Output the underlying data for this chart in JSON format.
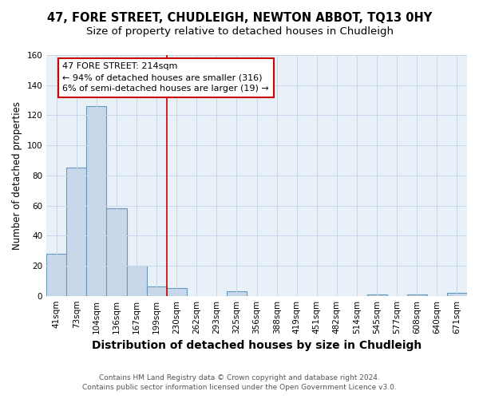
{
  "title": "47, FORE STREET, CHUDLEIGH, NEWTON ABBOT, TQ13 0HY",
  "subtitle": "Size of property relative to detached houses in Chudleigh",
  "xlabel": "Distribution of detached houses by size in Chudleigh",
  "ylabel": "Number of detached properties",
  "categories": [
    "41sqm",
    "73sqm",
    "104sqm",
    "136sqm",
    "167sqm",
    "199sqm",
    "230sqm",
    "262sqm",
    "293sqm",
    "325sqm",
    "356sqm",
    "388sqm",
    "419sqm",
    "451sqm",
    "482sqm",
    "514sqm",
    "545sqm",
    "577sqm",
    "608sqm",
    "640sqm",
    "671sqm"
  ],
  "values": [
    28,
    85,
    126,
    58,
    20,
    6,
    5,
    0,
    0,
    3,
    0,
    0,
    0,
    0,
    0,
    0,
    1,
    0,
    1,
    0,
    2
  ],
  "bar_color": "#c8d8ea",
  "bar_edge_color": "#6699bb",
  "subject_line_color": "#cc0000",
  "annotation_line1": "47 FORE STREET: 214sqm",
  "annotation_line2": "← 94% of detached houses are smaller (316)",
  "annotation_line3": "6% of semi-detached houses are larger (19) →",
  "annotation_box_color": "#ffffff",
  "annotation_box_edge_color": "#cc0000",
  "ylim": [
    0,
    160
  ],
  "yticks": [
    0,
    20,
    40,
    60,
    80,
    100,
    120,
    140,
    160
  ],
  "grid_color": "#c8d8ea",
  "bg_color": "#e8f0f8",
  "fig_bg_color": "#ffffff",
  "footer_line1": "Contains HM Land Registry data © Crown copyright and database right 2024.",
  "footer_line2": "Contains public sector information licensed under the Open Government Licence v3.0.",
  "title_fontsize": 10.5,
  "subtitle_fontsize": 9.5,
  "xlabel_fontsize": 10,
  "ylabel_fontsize": 8.5,
  "tick_fontsize": 7.5,
  "footer_fontsize": 6.5
}
